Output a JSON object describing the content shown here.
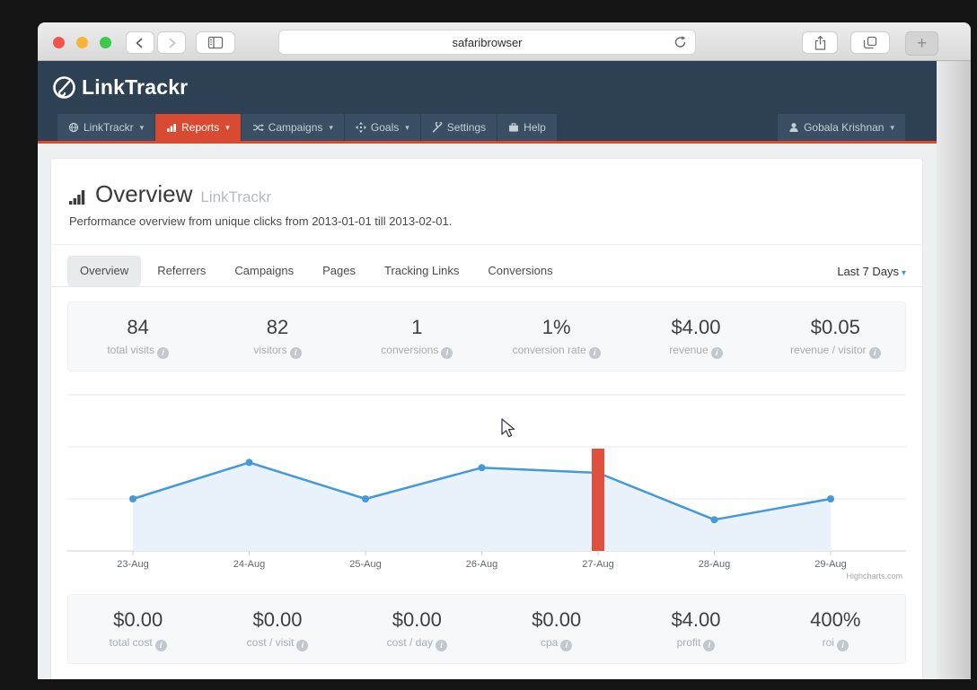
{
  "browser": {
    "url_text": "safaribrowser",
    "plus_label": "+"
  },
  "header": {
    "brand": "LinkTrackr"
  },
  "nav": {
    "items": [
      {
        "label": "LinkTrackr",
        "icon": "globe-icon",
        "caret": "▾"
      },
      {
        "label": "Reports",
        "icon": "bar-chart-icon",
        "caret": "▾",
        "active": true
      },
      {
        "label": "Campaigns",
        "icon": "shuffle-icon",
        "caret": "▾"
      },
      {
        "label": "Goals",
        "icon": "move-icon",
        "caret": "▾"
      },
      {
        "label": "Settings",
        "icon": "wrench-icon",
        "caret": ""
      },
      {
        "label": "Help",
        "icon": "briefcase-icon",
        "caret": ""
      }
    ],
    "user": {
      "name": "Gobala Krishnan",
      "icon": "user-icon",
      "caret": "▾"
    }
  },
  "page": {
    "title": "Overview",
    "title_suffix": "LinkTrackr",
    "subtitle": "Performance overview from unique clicks from 2013-01-01 till 2013-02-01.",
    "tabs": [
      {
        "label": "Overview",
        "active": true
      },
      {
        "label": "Referrers"
      },
      {
        "label": "Campaigns"
      },
      {
        "label": "Pages"
      },
      {
        "label": "Tracking Links"
      },
      {
        "label": "Conversions"
      }
    ],
    "date_range": "Last 7 Days",
    "caret": "▾"
  },
  "stats_top": [
    {
      "value": "84",
      "label": "total visits"
    },
    {
      "value": "82",
      "label": "visitors"
    },
    {
      "value": "1",
      "label": "conversions"
    },
    {
      "value": "1%",
      "label": "conversion rate"
    },
    {
      "value": "$4.00",
      "label": "revenue"
    },
    {
      "value": "$0.05",
      "label": "revenue / visitor"
    }
  ],
  "stats_bottom": [
    {
      "value": "$0.00",
      "label": "total cost"
    },
    {
      "value": "$0.00",
      "label": "cost / visit"
    },
    {
      "value": "$0.00",
      "label": "cost / day"
    },
    {
      "value": "$0.00",
      "label": "cpa"
    },
    {
      "value": "$4.00",
      "label": "profit"
    },
    {
      "value": "400%",
      "label": "roi"
    }
  ],
  "chart_data": {
    "type": "area",
    "x": [
      "23-Aug",
      "24-Aug",
      "25-Aug",
      "26-Aug",
      "27-Aug",
      "28-Aug",
      "29-Aug"
    ],
    "series": [
      {
        "name": "visits",
        "type": "area",
        "color": "#4499d9",
        "fill": "#e9f2fa",
        "values": [
          10,
          17,
          10,
          16,
          15,
          6,
          10
        ]
      },
      {
        "name": "conversions",
        "type": "column",
        "color": "#e0503c",
        "values": [
          0,
          0,
          0,
          0,
          1,
          0,
          0
        ]
      }
    ],
    "ylim": [
      0,
      30
    ],
    "grid": true,
    "legend": "none",
    "credit": "Highcharts.com"
  },
  "colors": {
    "navy_header": "#2e4154",
    "nav_tab": "#3a4f63",
    "accent_red": "#d94a33",
    "chart_line_blue": "#4499d9",
    "chart_fill_blue": "#e9f2fa",
    "conversion_bar_red": "#e0503c",
    "link_blue": "#3f96d2",
    "page_bg": "#edf0f1"
  }
}
